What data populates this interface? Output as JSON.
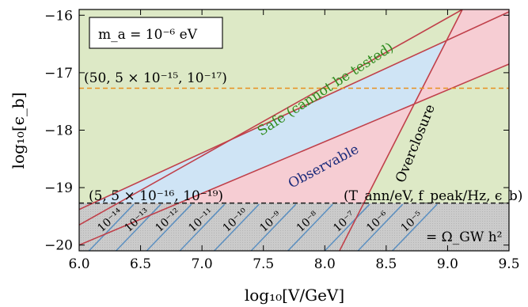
{
  "chart_data": {
    "type": "area",
    "xlabel": "log₁₀[V/GeV]",
    "ylabel": "log₁₀[ϵ_b]",
    "xlim": [
      6.0,
      9.5
    ],
    "ylim": [
      -20.1,
      -15.9
    ],
    "x_ticks": [
      "6.0",
      "6.5",
      "7.0",
      "7.5",
      "8.0",
      "8.5",
      "9.0",
      "9.5"
    ],
    "y_ticks": [
      "−20",
      "−19",
      "−18",
      "−17",
      "−16"
    ],
    "y_tick_values": [
      -20,
      -19,
      -18,
      -17,
      -16
    ],
    "x_tick_values": [
      6.0,
      6.5,
      7.0,
      7.5,
      8.0,
      8.5,
      9.0,
      9.5
    ],
    "mass_box": "m_a = 10⁻⁶ eV",
    "regions": [
      {
        "name": "Safe (cannot be tested)",
        "color": "#dde9c6",
        "text_color": "#2e8b1e"
      },
      {
        "name": "Observable",
        "color": "#cfe4f5",
        "text_color": "#1a2a7a"
      },
      {
        "name": "Overclosure",
        "color": "#f6cdd3",
        "text_color": "#000000"
      },
      {
        "name": "= Ω_GW h²",
        "color": "#c8c8c8",
        "text_color": "#000000"
      }
    ],
    "boundary_lines": {
      "color": "#c0404a",
      "safe_upper": [
        [
          6.0,
          -19.65
        ],
        [
          9.12,
          -15.9
        ]
      ],
      "safe_lower": [
        [
          6.0,
          -19.38
        ],
        [
          9.5,
          -15.94
        ]
      ],
      "observable_lower": [
        [
          6.0,
          -20.0
        ],
        [
          9.5,
          -16.85
        ]
      ],
      "overclosure": [
        [
          8.12,
          -20.1
        ],
        [
          9.12,
          -15.9
        ]
      ]
    },
    "reference_lines": [
      {
        "y": -17.27,
        "color": "#e8901e",
        "style": "dashed",
        "label": "(50, 5 × 10⁻¹⁵, 10⁻¹⁷)"
      },
      {
        "y": -19.27,
        "color": "#222222",
        "style": "dashed",
        "label": "(5, 5 × 10⁻¹⁶, 10⁻¹⁹)"
      }
    ],
    "triple_legend": "(T_ann/eV, f_peak/Hz, ϵ_b)",
    "gw_contours": {
      "color": "#5b8fc0",
      "labels": [
        "10⁻¹⁴",
        "10⁻¹³",
        "10⁻¹²",
        "10⁻¹¹",
        "10⁻¹⁰",
        "10⁻⁹",
        "10⁻⁸",
        "10⁻⁷",
        "10⁻⁶",
        "10⁻⁵"
      ],
      "x_at_bottom": [
        6.08,
        6.3,
        6.55,
        6.82,
        7.1,
        7.4,
        7.7,
        8.0,
        8.27,
        8.55
      ],
      "slope": 1.0
    }
  }
}
